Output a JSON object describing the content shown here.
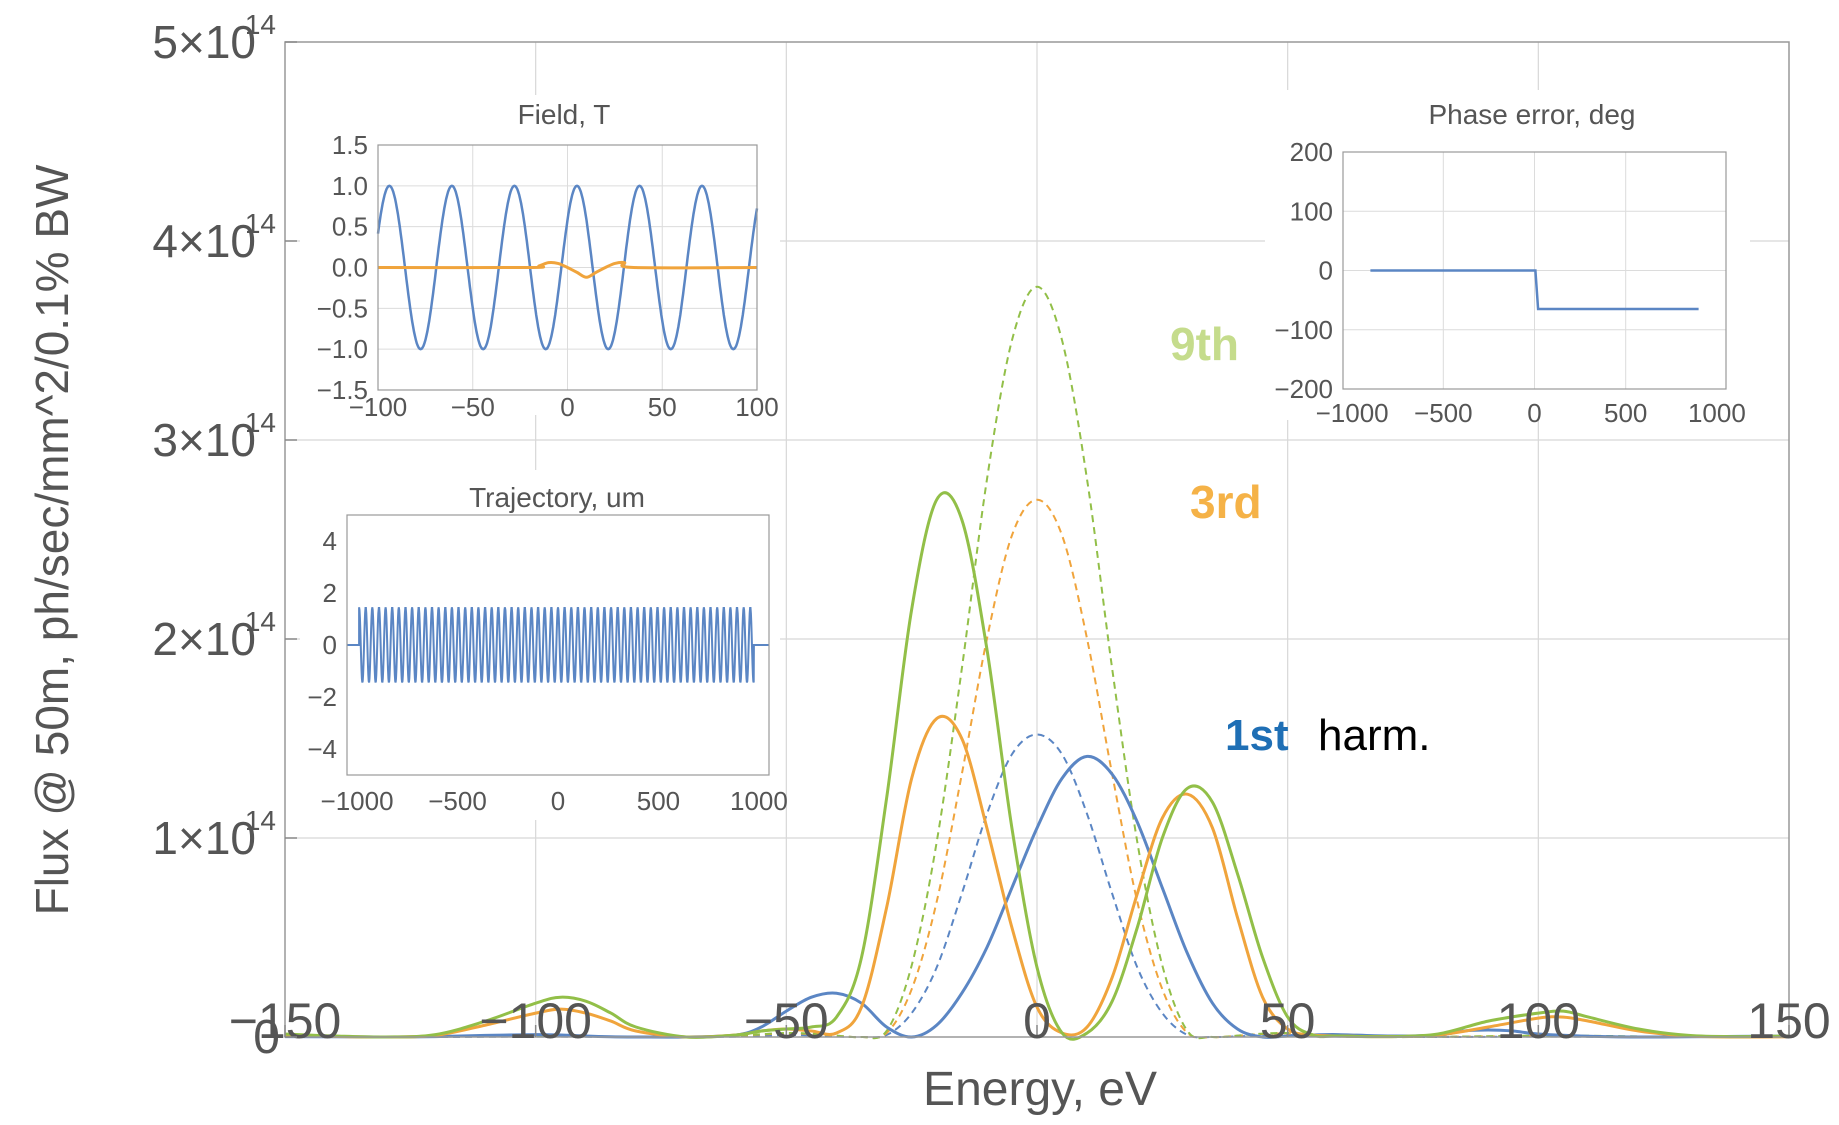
{
  "chart_data": [
    {
      "type": "line",
      "title": "",
      "xlabel": "Energy, eV",
      "ylabel": "Flux @ 50m, ph/sec/mm^2/0.1% BW",
      "xlim": [
        -150,
        150
      ],
      "ylim": [
        0,
        500000000000000.0
      ],
      "x_ticks": [
        "−150",
        "−100",
        "−50",
        "0",
        "50",
        "100",
        "150"
      ],
      "y_ticks": [
        "0",
        "1×10",
        "2×10",
        "3×10",
        "4×10",
        "5×10"
      ],
      "y_tick_exponent": "14",
      "grid": true,
      "annotations": {
        "ninth": {
          "text": "9th",
          "color": "#c5dc8c"
        },
        "third": {
          "text": "3rd",
          "color": "#f5b247"
        },
        "first": {
          "text": "1st",
          "color": "#1f6fb5"
        },
        "harm": {
          "text": "harm.",
          "color": "#000000"
        }
      },
      "series": [
        {
          "id": "h1-ideal",
          "color": "#5b86c4",
          "dash": true,
          "x": [
            -150,
            -140,
            -130,
            -120,
            -110,
            -100,
            -90,
            -80,
            -70,
            -60,
            -55,
            -50,
            -45,
            -40,
            -35,
            -30,
            -25,
            -20,
            -15,
            -10,
            -5,
            0,
            5,
            10,
            15,
            20,
            25,
            30,
            35,
            40,
            45,
            50,
            55,
            60,
            70,
            80,
            90,
            100,
            110,
            120,
            130,
            140,
            150
          ],
          "y": [
            200000000000.0,
            100000000000.0,
            50000000000.0,
            0,
            100000000000.0,
            200000000000.0,
            100000000000.0,
            0,
            0,
            200000000000.0,
            600000000000.0,
            1000000000000.0,
            800000000000.0,
            300000000000.0,
            0,
            1000000000000.0,
            12000000000000.0,
            35000000000000.0,
            72000000000000.0,
            112000000000000.0,
            142000000000000.0,
            152000000000000.0,
            142000000000000.0,
            112000000000000.0,
            72000000000000.0,
            35000000000000.0,
            12000000000000.0,
            1000000000000.0,
            0,
            300000000000.0,
            800000000000.0,
            1000000000000.0,
            600000000000.0,
            200000000000.0,
            0,
            0,
            100000000000.0,
            200000000000.0,
            100000000000.0,
            0,
            50000000000.0,
            100000000000.0,
            200000000000.0
          ]
        },
        {
          "id": "h3-ideal",
          "color": "#f0a43c",
          "dash": true,
          "x": [
            -150,
            -140,
            -130,
            -120,
            -110,
            -100,
            -90,
            -80,
            -70,
            -60,
            -55,
            -50,
            -45,
            -40,
            -35,
            -30,
            -25,
            -20,
            -15,
            -10,
            -5,
            0,
            5,
            10,
            15,
            20,
            25,
            30,
            35,
            40,
            45,
            50,
            55,
            60,
            70,
            80,
            90,
            100,
            110,
            120,
            130,
            140,
            150
          ],
          "y": [
            300000000000.0,
            100000000000.0,
            0,
            200000000000.0,
            400000000000.0,
            500000000000.0,
            300000000000.0,
            100000000000.0,
            0,
            500000000000.0,
            1200000000000.0,
            1800000000000.0,
            1500000000000.0,
            600000000000.0,
            0,
            2000000000000.0,
            24000000000000.0,
            68000000000000.0,
            132000000000000.0,
            200000000000000.0,
            252000000000000.0,
            270000000000000.0,
            252000000000000.0,
            200000000000000.0,
            132000000000000.0,
            68000000000000.0,
            24000000000000.0,
            2000000000000.0,
            0,
            600000000000.0,
            1500000000000.0,
            1800000000000.0,
            1200000000000.0,
            500000000000.0,
            0,
            100000000000.0,
            300000000000.0,
            500000000000.0,
            400000000000.0,
            200000000000.0,
            0,
            100000000000.0,
            300000000000.0
          ]
        },
        {
          "id": "h9-ideal",
          "color": "#92bf48",
          "dash": true,
          "x": [
            -150,
            -140,
            -130,
            -120,
            -110,
            -100,
            -90,
            -80,
            -70,
            -60,
            -55,
            -50,
            -45,
            -40,
            -35,
            -30,
            -25,
            -20,
            -15,
            -10,
            -5,
            0,
            5,
            10,
            15,
            20,
            25,
            30,
            35,
            40,
            45,
            50,
            55,
            60,
            70,
            80,
            90,
            100,
            110,
            120,
            130,
            140,
            150
          ],
          "y": [
            400000000000.0,
            200000000000.0,
            0,
            300000000000.0,
            600000000000.0,
            700000000000.0,
            400000000000.0,
            100000000000.0,
            0,
            600000000000.0,
            1400000000000.0,
            2000000000000.0,
            1700000000000.0,
            700000000000.0,
            0,
            3000000000000.0,
            36000000000000.0,
            98000000000000.0,
            185000000000000.0,
            280000000000000.0,
            350000000000000.0,
            377000000000000.0,
            350000000000000.0,
            280000000000000.0,
            185000000000000.0,
            98000000000000.0,
            36000000000000.0,
            3000000000000.0,
            0,
            700000000000.0,
            1700000000000.0,
            2000000000000.0,
            1400000000000.0,
            600000000000.0,
            0,
            100000000000.0,
            400000000000.0,
            700000000000.0,
            600000000000.0,
            300000000000.0,
            0,
            200000000000.0,
            400000000000.0
          ]
        },
        {
          "id": "h1-error",
          "color": "#5b86c4",
          "dash": false,
          "x": [
            -150,
            -140,
            -130,
            -120,
            -110,
            -100,
            -95,
            -90,
            -85,
            -80,
            -70,
            -60,
            -55,
            -50,
            -45,
            -40,
            -35,
            -30,
            -25,
            -20,
            -15,
            -10,
            -5,
            0,
            5,
            10,
            15,
            20,
            25,
            30,
            35,
            40,
            45,
            50,
            55,
            60,
            70,
            80,
            85,
            90,
            95,
            100,
            110,
            120,
            130,
            140,
            150
          ],
          "y": [
            200000000000.0,
            100000000000.0,
            0,
            200000000000.0,
            800000000000.0,
            1200000000000.0,
            1000000000000.0,
            500000000000.0,
            100000000000.0,
            0,
            0,
            1000000000000.0,
            5000000000000.0,
            13000000000000.0,
            20000000000000.0,
            22000000000000.0,
            17000000000000.0,
            5000000000000.0,
            0,
            6000000000000.0,
            22000000000000.0,
            45000000000000.0,
            75000000000000.0,
            105000000000000.0,
            130000000000000.0,
            141000000000000.0,
            132000000000000.0,
            108000000000000.0,
            75000000000000.0,
            42000000000000.0,
            17000000000000.0,
            4000000000000.0,
            0,
            500000000000.0,
            1000000000000.0,
            1200000000000.0,
            500000000000.0,
            1000000000000.0,
            3000000000000.0,
            3500000000000.0,
            3000000000000.0,
            1500000000000.0,
            400000000000.0,
            0,
            100000000000.0,
            300000000000.0,
            500000000000.0
          ]
        },
        {
          "id": "h3-error",
          "color": "#f0a43c",
          "dash": false,
          "x": [
            -150,
            -140,
            -130,
            -120,
            -110,
            -100,
            -95,
            -90,
            -85,
            -80,
            -70,
            -60,
            -55,
            -50,
            -45,
            -40,
            -35,
            -30,
            -25,
            -20,
            -15,
            -10,
            -5,
            0,
            5,
            10,
            15,
            20,
            25,
            30,
            35,
            40,
            45,
            50,
            55,
            60,
            70,
            80,
            90,
            100,
            105,
            110,
            120,
            130,
            140,
            150
          ],
          "y": [
            1000000000000.0,
            300000000000.0,
            0,
            800000000000.0,
            6000000000000.0,
            12000000000000.0,
            14000000000000.0,
            12000000000000.0,
            8000000000000.0,
            3000000000000.0,
            0,
            1000000000000.0,
            3000000000000.0,
            4000000000000.0,
            3000000000000.0,
            2000000000000.0,
            15000000000000.0,
            65000000000000.0,
            130000000000000.0,
            160000000000000.0,
            150000000000000.0,
            105000000000000.0,
            55000000000000.0,
            15000000000000.0,
            2000000000000.0,
            5000000000000.0,
            30000000000000.0,
            72000000000000.0,
            110000000000000.0,
            122000000000000.0,
            105000000000000.0,
            60000000000000.0,
            20000000000000.0,
            4000000000000.0,
            1000000000000.0,
            500000000000.0,
            200000000000.0,
            1000000000000.0,
            5000000000000.0,
            9500000000000.0,
            10000000000000.0,
            8000000000000.0,
            3000000000000.0,
            500000000000.0,
            0,
            100000000000.0
          ]
        },
        {
          "id": "h9-error",
          "color": "#92bf48",
          "dash": false,
          "x": [
            -150,
            -140,
            -130,
            -120,
            -110,
            -100,
            -95,
            -90,
            -85,
            -80,
            -70,
            -60,
            -55,
            -50,
            -45,
            -40,
            -35,
            -30,
            -25,
            -20,
            -15,
            -10,
            -5,
            0,
            5,
            10,
            15,
            20,
            25,
            30,
            35,
            40,
            45,
            50,
            55,
            60,
            70,
            80,
            90,
            100,
            105,
            110,
            120,
            130,
            140,
            150
          ],
          "y": [
            1500000000000.0,
            500000000000.0,
            0,
            1200000000000.0,
            8000000000000.0,
            17000000000000.0,
            20000000000000.0,
            18000000000000.0,
            12000000000000.0,
            5000000000000.0,
            0,
            1000000000000.0,
            3000000000000.0,
            4000000000000.0,
            5000000000000.0,
            10000000000000.0,
            40000000000000.0,
            120000000000000.0,
            215000000000000.0,
            270000000000000.0,
            260000000000000.0,
            195000000000000.0,
            105000000000000.0,
            35000000000000.0,
            2000000000000.0,
            2000000000000.0,
            18000000000000.0,
            55000000000000.0,
            100000000000000.0,
            125000000000000.0,
            118000000000000.0,
            82000000000000.0,
            40000000000000.0,
            10000000000000.0,
            1000000000000.0,
            500000000000.0,
            200000000000.0,
            1500000000000.0,
            8000000000000.0,
            12000000000000.0,
            13000000000000.0,
            10000000000000.0,
            4000000000000.0,
            800000000000.0,
            200000000000.0,
            500000000000.0
          ]
        }
      ]
    },
    {
      "type": "line",
      "title": "Field, T",
      "xlim": [
        -100,
        100
      ],
      "ylim": [
        -1.5,
        1.5
      ],
      "x_ticks": [
        "−100",
        "−50",
        "0",
        "50",
        "100"
      ],
      "y_ticks": [
        "1.5",
        "1.0",
        "0.5",
        "0.0",
        "−0.5",
        "−1.0",
        "−1.5"
      ],
      "grid": true,
      "series": [
        {
          "id": "field-main",
          "color": "#5b86c4",
          "function": "cos(2*pi*(x-5)/33)",
          "amplitude": 1.0,
          "period": 33
        },
        {
          "id": "field-error",
          "color": "#f0a43c",
          "x": [
            -100,
            -20,
            -15,
            -10,
            -5,
            0,
            5,
            10,
            15,
            20,
            25,
            30,
            35,
            100
          ],
          "y": [
            0,
            0,
            0.02,
            0.06,
            0.05,
            0,
            -0.06,
            -0.12,
            -0.06,
            0,
            0.05,
            0.06,
            0,
            0
          ]
        }
      ]
    },
    {
      "type": "line",
      "title": "Trajectory, um",
      "xlim": [
        -1050,
        1050
      ],
      "ylim": [
        -5,
        5
      ],
      "x_ticks": [
        "−1000",
        "−500",
        "0",
        "500",
        "1000"
      ],
      "y_ticks": [
        "4",
        "2",
        "0",
        "−2",
        "−4"
      ],
      "grid": false,
      "series": [
        {
          "id": "trajectory",
          "color": "#5b86c4",
          "oscillation": {
            "start": -990,
            "end": 975,
            "center": 0.0,
            "amplitude": 1.45,
            "period": 33
          }
        }
      ]
    },
    {
      "type": "line",
      "title": "Phase error, deg",
      "xlim": [
        -1050,
        1050
      ],
      "ylim": [
        -200,
        200
      ],
      "x_ticks": [
        "−1000",
        "−500",
        "0",
        "500",
        "1000"
      ],
      "y_ticks": [
        "200",
        "100",
        "0",
        "−100",
        "−200"
      ],
      "grid": true,
      "series": [
        {
          "id": "phase",
          "color": "#5b86c4",
          "x": [
            -900,
            -5,
            5,
            20,
            40,
            900
          ],
          "y": [
            0,
            0,
            0,
            -65,
            -65,
            -65
          ]
        }
      ]
    }
  ]
}
